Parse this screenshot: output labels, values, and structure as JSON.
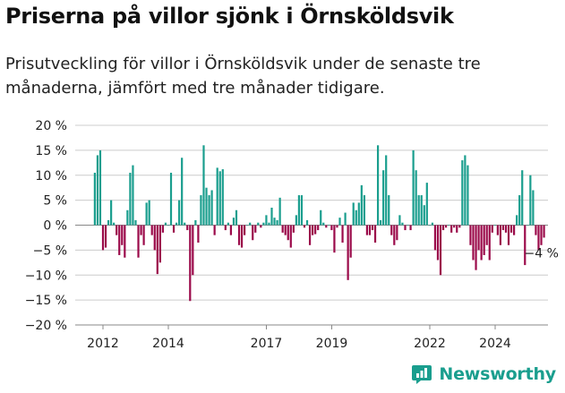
{
  "title": "Priserna på villor sjönk i Örnsköldsvik",
  "subtitle": "Prisutveckling för villor i Örnsköldsvik under de senaste tre månaderna, jämfört med tre månader tidigare.",
  "brand": "Newsworthy",
  "colors": {
    "positive": "#1a9e8e",
    "negative": "#9b0a4a",
    "grid": "#cccccc",
    "brand": "#1a9e8e"
  },
  "chart_data": {
    "type": "bar",
    "title": "Priserna på villor sjönk i Örnsköldsvik",
    "xlabel": "",
    "ylabel": "",
    "ylim": [
      -20,
      20
    ],
    "yticks": [
      20,
      15,
      10,
      5,
      0,
      -5,
      -10,
      -15,
      -20
    ],
    "ytick_labels": [
      "20 %",
      "15 %",
      "10 %",
      "5 %",
      "0 %",
      "−5 %",
      "−10 %",
      "−15 %",
      "−20 %"
    ],
    "xticks": [
      2012,
      2014,
      2017,
      2019,
      2022,
      2024
    ],
    "x_start": 2011.75,
    "x_step": 0.0833,
    "values": [
      10.5,
      14,
      15,
      -5,
      -4.5,
      1,
      5,
      0.5,
      -2,
      -6,
      -4,
      -6.5,
      3,
      10.5,
      12,
      1,
      -6.5,
      -2,
      -4,
      4.5,
      5,
      -2,
      -5,
      -9.8,
      -7.5,
      -1.5,
      0.5,
      0,
      10.5,
      -1.5,
      0.5,
      5,
      13.5,
      0.5,
      -1,
      -15.2,
      -10,
      1,
      -3.5,
      6,
      16,
      7.5,
      6,
      7,
      -2,
      11.5,
      10.8,
      11.2,
      -1,
      0.5,
      -2,
      1.5,
      3,
      -4,
      -4.5,
      -2,
      0,
      0.5,
      -3,
      -1.5,
      0.5,
      -0.5,
      0.5,
      2,
      0.5,
      3.5,
      1.5,
      1,
      5.5,
      -1.5,
      -2,
      -3,
      -4.5,
      -1.5,
      2,
      6,
      6,
      -0.5,
      1,
      -4,
      -2,
      -1.8,
      -1,
      3,
      0.5,
      -0.5,
      0,
      -1,
      -5.5,
      -0.5,
      1.5,
      -3.5,
      2.5,
      -11,
      -6.5,
      4.5,
      3,
      4.5,
      8,
      6,
      -2,
      -2,
      -1,
      -3.5,
      16,
      1,
      11,
      14,
      6,
      -2,
      -4,
      -3,
      2,
      0.5,
      -1,
      0,
      -1,
      15,
      11,
      6,
      6,
      4,
      8.5,
      0,
      0.5,
      -5,
      -7,
      -10,
      -1,
      -0.5,
      0,
      -1.5,
      -0.5,
      -1.5,
      -0.5,
      13,
      14,
      12,
      -4,
      -7,
      -9,
      -5,
      -7,
      -6,
      -4,
      -7,
      -1.5,
      0,
      -2,
      -4,
      -1,
      -1.5,
      -4,
      -1.5,
      -2,
      2,
      6,
      11,
      -8,
      0,
      10,
      7,
      -2,
      -5,
      -4,
      -2.5
    ],
    "annotation": "−4 %"
  }
}
